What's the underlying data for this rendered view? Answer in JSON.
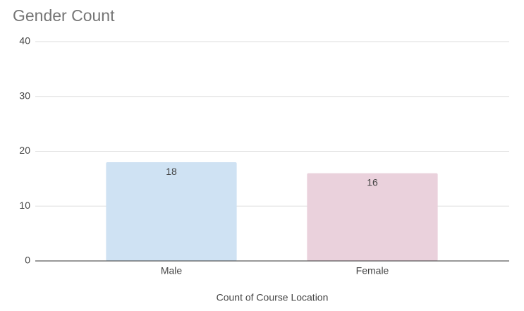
{
  "chart_data": {
    "type": "bar",
    "title": "Gender Count",
    "x_label": "Count of Course Location",
    "categories": [
      "Male",
      "Female"
    ],
    "values": [
      18,
      16
    ],
    "colors": [
      "#cfe2f3",
      "#ead1dc"
    ],
    "ylim": [
      0,
      40
    ],
    "yticks": [
      0,
      10,
      20,
      30,
      40
    ],
    "grid": true
  }
}
